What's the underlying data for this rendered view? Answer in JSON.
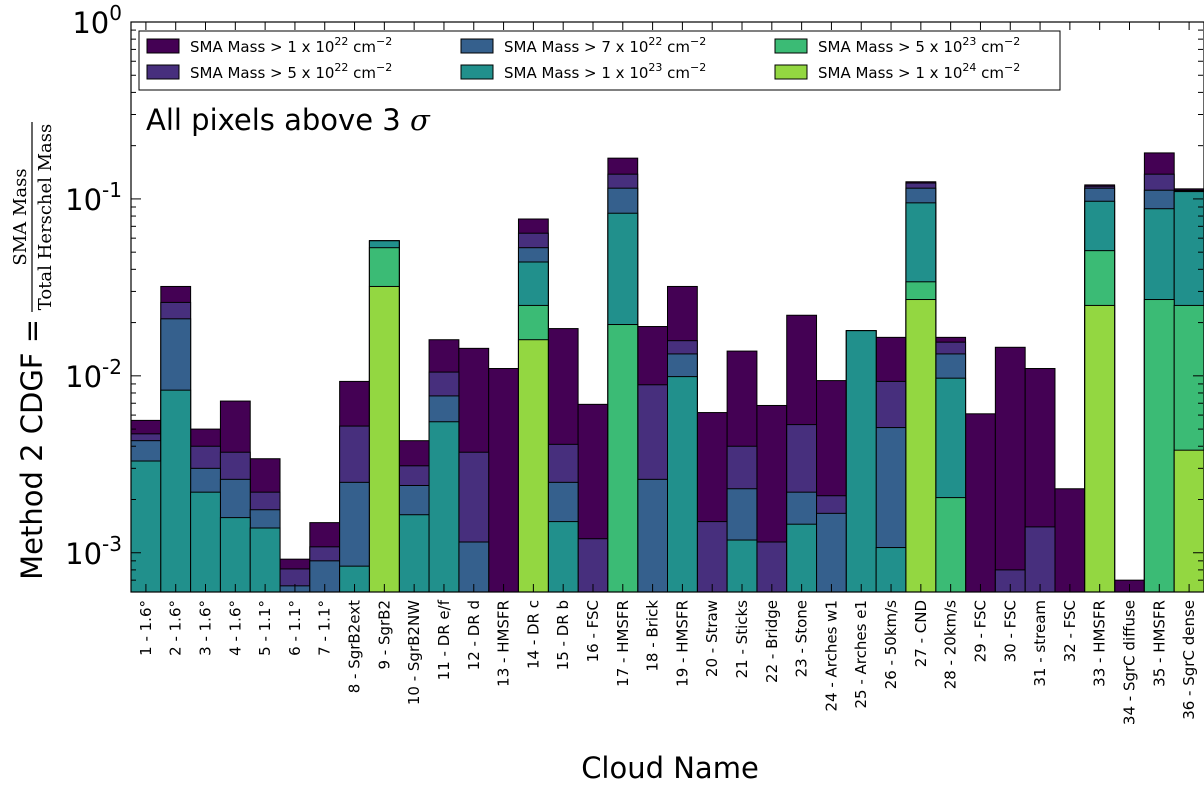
{
  "chart_data": {
    "type": "bar",
    "stacked": true,
    "y_scale": "log",
    "ylim": [
      0.0006,
      1.0
    ],
    "y_tick_labels": [
      {
        "base": "10",
        "exp": "0",
        "value": 1.0
      },
      {
        "base": "10",
        "exp": "-1",
        "value": 0.1
      },
      {
        "base": "10",
        "exp": "-2",
        "value": 0.01
      },
      {
        "base": "10",
        "exp": "-3",
        "value": 0.001
      }
    ],
    "title": "",
    "xlabel": "Cloud Name",
    "ylabel_prefix": "Method 2 CDGF = ",
    "ylabel_numerator": "SMA Mass",
    "ylabel_denominator": "Total Herschel Mass",
    "annotation_text": "All pixels above 3 ",
    "annotation_symbol": "σ",
    "legend_placement": "top-left",
    "colors": {
      "t1e22": "#440154",
      "t5e22": "#472f7d",
      "t7e22": "#35608d",
      "t1e23": "#21908c",
      "t5e23": "#3bbb75",
      "t1e24": "#93d741"
    },
    "legend": [
      {
        "key": "t1e22",
        "prefix": "SMA Mass > 1 x 10",
        "exp": "22",
        "unit": " cm",
        "unit_exp": "−2"
      },
      {
        "key": "t5e22",
        "prefix": "SMA Mass > 5 x 10",
        "exp": "22",
        "unit": " cm",
        "unit_exp": "−2"
      },
      {
        "key": "t7e22",
        "prefix": "SMA Mass > 7 x 10",
        "exp": "22",
        "unit": " cm",
        "unit_exp": "−2"
      },
      {
        "key": "t1e23",
        "prefix": "SMA Mass > 1 x 10",
        "exp": "23",
        "unit": " cm",
        "unit_exp": "−2"
      },
      {
        "key": "t5e23",
        "prefix": "SMA Mass > 5 x 10",
        "exp": "23",
        "unit": " cm",
        "unit_exp": "−2"
      },
      {
        "key": "t1e24",
        "prefix": "SMA Mass > 1 x 10",
        "exp": "24",
        "unit": " cm",
        "unit_exp": "−2"
      }
    ],
    "categories": [
      "1 - 1.6°",
      "2 - 1.6°",
      "3 - 1.6°",
      "4 - 1.6°",
      "5 - 1.1°",
      "6 - 1.1°",
      "7 - 1.1°",
      "8 - SgrB2ext",
      "9 - SgrB2",
      "10 - SgrB2NW",
      "11 - DR e/f",
      "12 - DR d",
      "13 - HMSFR",
      "14 - DR c",
      "15 - DR b",
      "16 - FSC",
      "17 - HMSFR",
      "18 - Brick",
      "19 - HMSFR",
      "20 - Straw",
      "21 - Sticks",
      "22 - Bridge",
      "23 - Stone",
      "24 - Arches w1",
      "25 - Arches e1",
      "26 - 50km/s",
      "27 - CND",
      "28 - 20km/s",
      "29 - FSC",
      "30 - FSC",
      "31 - stream",
      "32 - FSC",
      "33 - HMSFR",
      "34 - SgrC diffuse",
      "35 - HMSFR",
      "36 - SgrC dense"
    ],
    "series": [
      {
        "key": "t1e22",
        "values": [
          0.0056,
          0.032,
          0.005,
          0.0072,
          0.0034,
          0.00092,
          0.00148,
          0.0093,
          0.058,
          0.0043,
          0.016,
          0.0143,
          0.011,
          0.077,
          0.0185,
          0.0069,
          0.17,
          0.019,
          0.032,
          0.0062,
          0.0138,
          0.0068,
          0.022,
          0.0094,
          0.018,
          0.0165,
          0.125,
          0.0165,
          0.0061,
          0.0145,
          0.011,
          0.0023,
          0.12,
          0.0007,
          0.182,
          0.114
        ]
      },
      {
        "key": "t5e22",
        "values": [
          0.0047,
          0.026,
          0.004,
          0.0037,
          0.0022,
          0.00081,
          0.00108,
          0.0052,
          0.058,
          0.0031,
          0.0105,
          0.0037,
          null,
          0.064,
          0.0041,
          0.0012,
          0.138,
          0.0089,
          0.0158,
          0.0015,
          0.004,
          0.00115,
          0.0053,
          0.0021,
          0.018,
          0.0093,
          0.123,
          0.0155,
          null,
          0.0008,
          0.0014,
          null,
          0.118,
          null,
          0.138,
          0.112
        ]
      },
      {
        "key": "t7e22",
        "values": [
          0.0043,
          0.021,
          0.003,
          0.0026,
          0.00175,
          0.00065,
          0.0009,
          0.0025,
          0.058,
          0.0024,
          0.0077,
          0.00115,
          null,
          0.053,
          0.0025,
          null,
          0.115,
          0.0026,
          0.0133,
          null,
          0.0023,
          null,
          0.0022,
          0.00167,
          0.018,
          0.0051,
          0.115,
          0.0133,
          null,
          null,
          null,
          null,
          0.115,
          null,
          0.112,
          0.111
        ]
      },
      {
        "key": "t1e23",
        "values": [
          0.0033,
          0.0083,
          0.0022,
          0.00158,
          0.00138,
          null,
          null,
          0.00084,
          0.058,
          0.00164,
          0.0055,
          null,
          null,
          0.044,
          0.0015,
          null,
          0.083,
          null,
          0.0099,
          null,
          0.00118,
          null,
          0.00145,
          null,
          0.018,
          0.00107,
          0.095,
          0.0097,
          null,
          null,
          null,
          null,
          0.097,
          null,
          0.088,
          0.11
        ]
      },
      {
        "key": "t5e23",
        "values": [
          null,
          null,
          null,
          null,
          null,
          null,
          null,
          null,
          0.053,
          null,
          null,
          null,
          null,
          0.025,
          null,
          null,
          0.0195,
          null,
          null,
          null,
          null,
          null,
          null,
          null,
          null,
          null,
          0.034,
          0.00205,
          null,
          null,
          null,
          null,
          0.051,
          null,
          0.027,
          0.025
        ]
      },
      {
        "key": "t1e24",
        "values": [
          null,
          null,
          null,
          null,
          null,
          null,
          null,
          null,
          0.032,
          null,
          null,
          null,
          null,
          0.016,
          null,
          null,
          null,
          null,
          null,
          null,
          null,
          null,
          null,
          null,
          null,
          null,
          0.027,
          null,
          null,
          null,
          null,
          null,
          0.025,
          null,
          null,
          0.0038
        ]
      }
    ]
  }
}
